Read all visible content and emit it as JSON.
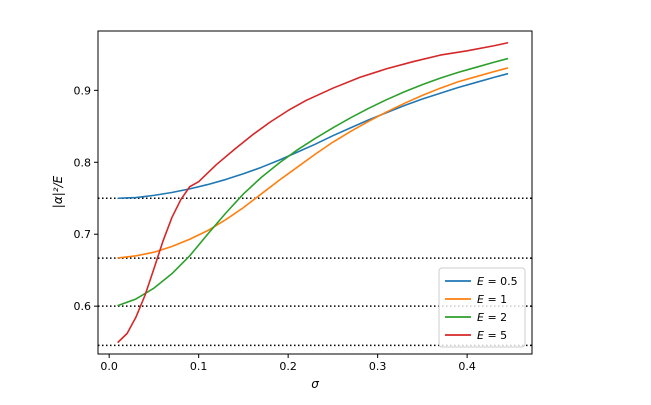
{
  "chart_data": {
    "type": "line",
    "xlabel": "σ",
    "ylabel": "|α|²/E",
    "xlim": [
      -0.0125,
      0.4725
    ],
    "ylim": [
      0.5335,
      0.9825
    ],
    "xticks": [
      0.0,
      0.1,
      0.2,
      0.3,
      0.4
    ],
    "xtick_labels": [
      "0.0",
      "0.1",
      "0.2",
      "0.3",
      "0.4"
    ],
    "yticks": [
      0.6,
      0.7,
      0.8,
      0.9
    ],
    "ytick_labels": [
      "0.6",
      "0.7",
      "0.8",
      "0.9"
    ],
    "grid": false,
    "legend_position": "lower-right",
    "reference_lines": {
      "style": "dotted",
      "color": "#000000",
      "y": [
        0.75,
        0.6667,
        0.6,
        0.5455
      ]
    },
    "series": [
      {
        "name": "E = 0.5",
        "legend_var": "E",
        "legend_value": "= 0.5",
        "color": "#1f77b4",
        "x": [
          0.01,
          0.03,
          0.05,
          0.07,
          0.09,
          0.11,
          0.13,
          0.15,
          0.17,
          0.19,
          0.21,
          0.23,
          0.25,
          0.27,
          0.29,
          0.31,
          0.33,
          0.35,
          0.37,
          0.39,
          0.41,
          0.43,
          0.445
        ],
        "y": [
          0.75,
          0.751,
          0.754,
          0.758,
          0.763,
          0.769,
          0.776,
          0.784,
          0.793,
          0.803,
          0.814,
          0.825,
          0.837,
          0.848,
          0.859,
          0.869,
          0.879,
          0.888,
          0.896,
          0.904,
          0.911,
          0.918,
          0.923
        ]
      },
      {
        "name": "E = 1",
        "legend_var": "E",
        "legend_value": "= 1",
        "color": "#ff7f0e",
        "x": [
          0.01,
          0.03,
          0.05,
          0.07,
          0.09,
          0.11,
          0.13,
          0.15,
          0.17,
          0.19,
          0.21,
          0.23,
          0.25,
          0.27,
          0.29,
          0.31,
          0.33,
          0.35,
          0.37,
          0.39,
          0.41,
          0.43,
          0.445
        ],
        "y": [
          0.667,
          0.67,
          0.675,
          0.683,
          0.693,
          0.705,
          0.72,
          0.737,
          0.756,
          0.775,
          0.793,
          0.811,
          0.828,
          0.843,
          0.857,
          0.87,
          0.882,
          0.893,
          0.903,
          0.912,
          0.919,
          0.926,
          0.931
        ]
      },
      {
        "name": "E = 2",
        "legend_var": "E",
        "legend_value": "= 2",
        "color": "#2ca02c",
        "x": [
          0.01,
          0.03,
          0.05,
          0.07,
          0.09,
          0.11,
          0.13,
          0.15,
          0.17,
          0.19,
          0.21,
          0.23,
          0.25,
          0.27,
          0.29,
          0.31,
          0.33,
          0.35,
          0.37,
          0.39,
          0.41,
          0.43,
          0.445
        ],
        "y": [
          0.601,
          0.61,
          0.625,
          0.645,
          0.67,
          0.7,
          0.729,
          0.756,
          0.779,
          0.799,
          0.817,
          0.833,
          0.848,
          0.862,
          0.875,
          0.887,
          0.898,
          0.908,
          0.917,
          0.925,
          0.932,
          0.939,
          0.944
        ]
      },
      {
        "name": "E = 5",
        "legend_var": "E",
        "legend_value": "= 5",
        "color": "#d62728",
        "x": [
          0.01,
          0.02,
          0.03,
          0.04,
          0.05,
          0.06,
          0.07,
          0.08,
          0.09,
          0.1,
          0.12,
          0.14,
          0.16,
          0.18,
          0.2,
          0.22,
          0.25,
          0.28,
          0.31,
          0.34,
          0.37,
          0.4,
          0.43,
          0.445
        ],
        "y": [
          0.55,
          0.562,
          0.585,
          0.615,
          0.652,
          0.69,
          0.723,
          0.748,
          0.766,
          0.773,
          0.797,
          0.818,
          0.838,
          0.856,
          0.872,
          0.886,
          0.903,
          0.918,
          0.93,
          0.94,
          0.949,
          0.955,
          0.962,
          0.966
        ]
      }
    ]
  }
}
